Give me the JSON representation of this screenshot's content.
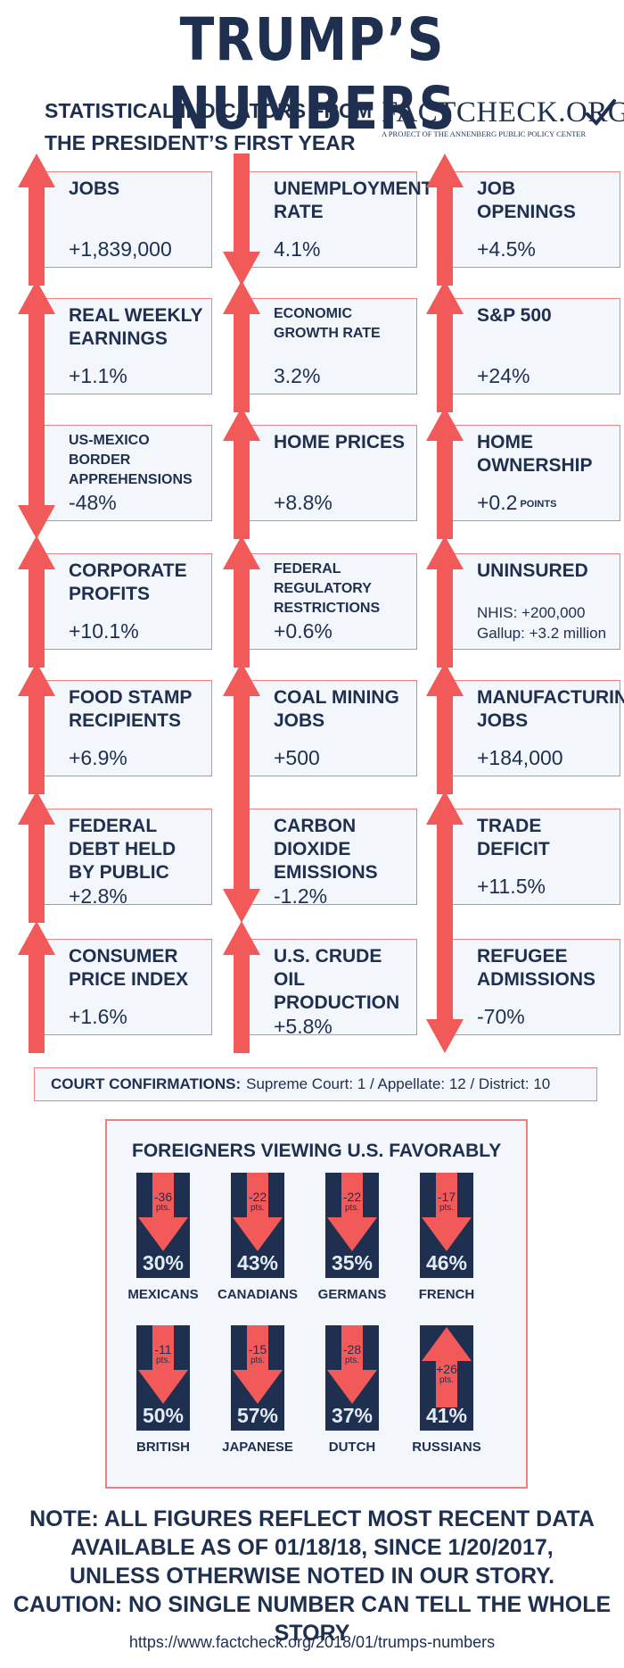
{
  "header": {
    "title": "TRUMP’S NUMBERS",
    "subtitle_line1": "STATISTICAL INDICATORS FROM",
    "subtitle_line2": "THE PRESIDENT’S FIRST YEAR",
    "logo_name": "FACTCHECK.ORG",
    "logo_tagline": "A PROJECT OF THE ANNENBERG PUBLIC POLICY CENTER"
  },
  "colors": {
    "navy": "#1e2f4f",
    "red": "#f25a5a",
    "panel": "#f3f6fb",
    "border": "#f08080"
  },
  "indicators": [
    {
      "label": "JOBS",
      "value": "+1,839,000",
      "direction": "up"
    },
    {
      "label": "UNEMPLOYMENT RATE",
      "value": "4.1%",
      "direction": "down"
    },
    {
      "label": "JOB OPENINGS",
      "value": "+4.5%",
      "direction": "up"
    },
    {
      "label": "REAL WEEKLY EARNINGS",
      "value": "+1.1%",
      "direction": "up"
    },
    {
      "label": "ECONOMIC GROWTH RATE",
      "value": "3.2%",
      "direction": "up"
    },
    {
      "label": "S&P 500",
      "value": "+24%",
      "direction": "up"
    },
    {
      "label": "US-MEXICO BORDER APPREHENSIONS",
      "value": "-48%",
      "direction": "down"
    },
    {
      "label": "HOME PRICES",
      "value": "+8.8%",
      "direction": "up"
    },
    {
      "label": "HOME OWNERSHIP",
      "value": "+0.2",
      "unit": "POINTS",
      "direction": "up"
    },
    {
      "label": "CORPORATE PROFITS",
      "value": "+10.1%",
      "direction": "up"
    },
    {
      "label": "FEDERAL REGULATORY RESTRICTIONS",
      "value": "+0.6%",
      "direction": "up"
    },
    {
      "label": "UNINSURED",
      "value": "NHIS: +200,000",
      "value2": "Gallup: +3.2 million",
      "direction": "up"
    },
    {
      "label": "FOOD STAMP RECIPIENTS",
      "value": "+6.9%",
      "direction": "up"
    },
    {
      "label": "COAL MINING JOBS",
      "value": "+500",
      "direction": "up"
    },
    {
      "label": "MANUFACTURING JOBS",
      "value": "+184,000",
      "direction": "up"
    },
    {
      "label": "FEDERAL DEBT HELD BY PUBLIC",
      "value": "+2.8%",
      "direction": "up"
    },
    {
      "label": "CARBON DIOXIDE EMISSIONS",
      "value": "-1.2%",
      "direction": "down"
    },
    {
      "label": "TRADE DEFICIT",
      "value": "+11.5%",
      "direction": "up"
    },
    {
      "label": "CONSUMER PRICE INDEX",
      "value": "+1.6%",
      "direction": "up"
    },
    {
      "label": "U.S. CRUDE OIL PRODUCTION",
      "value": "+5.8%",
      "direction": "up"
    },
    {
      "label": "REFUGEE ADMISSIONS",
      "value": "-70%",
      "direction": "down"
    }
  ],
  "court": {
    "label": "COURT CONFIRMATIONS:",
    "text": "Supreme Court: 1 / Appellate: 12 / District:  10"
  },
  "favorability": {
    "title": "FOREIGNERS VIEWING U.S. FAVORABLY",
    "pts_label": "pts.",
    "items": [
      {
        "name": "MEXICANS",
        "change": "-36",
        "percent": "30%",
        "direction": "down"
      },
      {
        "name": "CANADIANS",
        "change": "-22",
        "percent": "43%",
        "direction": "down"
      },
      {
        "name": "GERMANS",
        "change": "-22",
        "percent": "35%",
        "direction": "down"
      },
      {
        "name": "FRENCH",
        "change": "-17",
        "percent": "46%",
        "direction": "down"
      },
      {
        "name": "BRITISH",
        "change": "-11",
        "percent": "50%",
        "direction": "down"
      },
      {
        "name": "JAPANESE",
        "change": "-15",
        "percent": "57%",
        "direction": "down"
      },
      {
        "name": "DUTCH",
        "change": "-28",
        "percent": "37%",
        "direction": "down"
      },
      {
        "name": "RUSSIANS",
        "change": "+26",
        "percent": "41%",
        "direction": "up"
      }
    ]
  },
  "note": {
    "line1": "NOTE: ALL FIGURES REFLECT MOST RECENT DATA",
    "line2": "AVAILABLE AS OF 01/18/18, SINCE 1/20/2017,",
    "line3": "UNLESS OTHERWISE NOTED IN OUR STORY.",
    "line4": "CAUTION: NO SINGLE NUMBER CAN TELL THE WHOLE STORY"
  },
  "url": "https://www.factcheck.org/2018/01/trumps-numbers"
}
